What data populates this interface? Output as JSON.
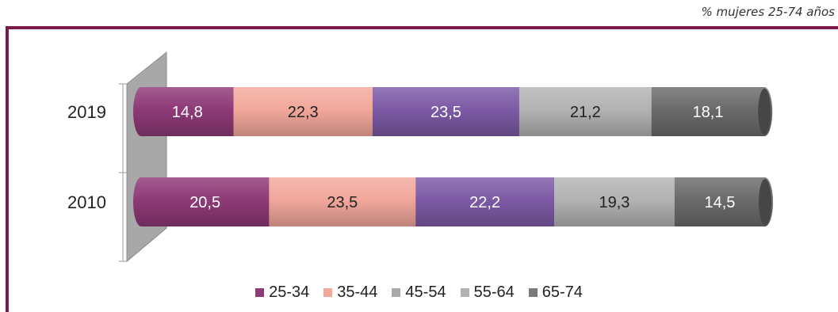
{
  "unit_note": "% mujeres 25-74 años",
  "colors": {
    "frame": "#7a1a4a",
    "wall": "#a8a8a8"
  },
  "chart_data": {
    "type": "bar",
    "orientation": "horizontal",
    "stacked": true,
    "percent_stacked": true,
    "categories": [
      "2019",
      "2010"
    ],
    "series": [
      {
        "name": "25-34",
        "values": [
          14.8,
          20.5
        ],
        "color": "#8e3a77",
        "legend_color": "#8e3a77",
        "text_color": "#ffffff"
      },
      {
        "name": "35-44",
        "values": [
          22.3,
          23.5
        ],
        "color": "#f3a89c",
        "legend_color": "#f3a89c",
        "text_color": "#222222"
      },
      {
        "name": "45-54",
        "values": [
          23.5,
          22.2
        ],
        "color": "#7d5aa6",
        "legend_color": "#a9a9a9",
        "text_color": "#ffffff"
      },
      {
        "name": "55-64",
        "values": [
          21.2,
          19.3
        ],
        "color": "#b3b3b3",
        "legend_color": "#b3b3b3",
        "text_color": "#222222"
      },
      {
        "name": "65-74",
        "values": [
          18.1,
          14.5
        ],
        "color": "#6b6b6b",
        "legend_color": "#7a7a7a",
        "text_color": "#ffffff"
      }
    ],
    "data_labels": [
      [
        "14,8",
        "22,3",
        "23,5",
        "21,2",
        "18,1"
      ],
      [
        "20,5",
        "23,5",
        "22,2",
        "19,3",
        "14,5"
      ]
    ],
    "xlim": [
      0,
      100
    ],
    "legend": "bottom",
    "grid": false
  }
}
